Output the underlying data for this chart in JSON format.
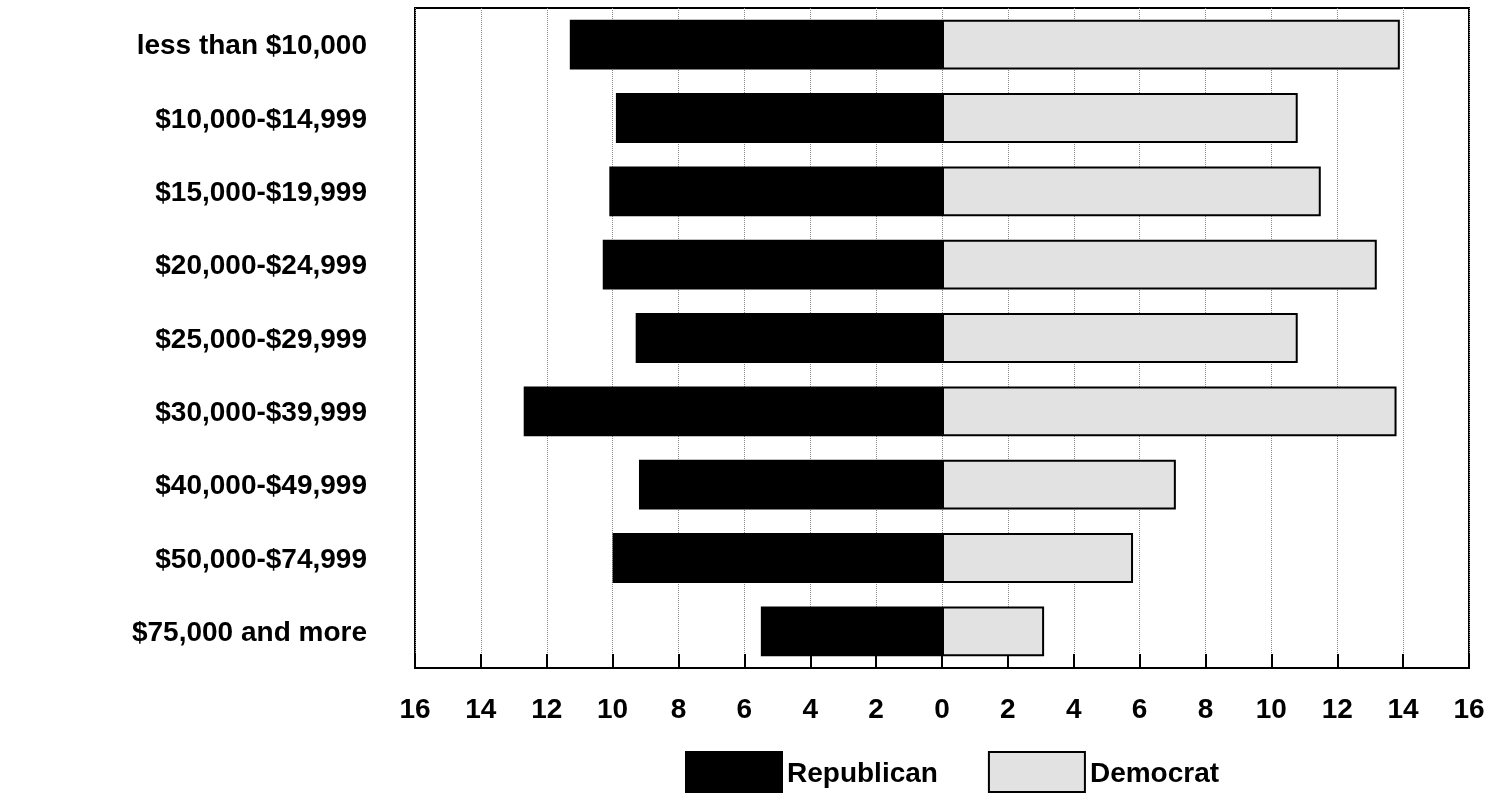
{
  "chart_data": {
    "type": "bar",
    "orientation": "horizontal",
    "categories": [
      "less than $10,000",
      "$10,000-$14,999",
      "$15,000-$19,999",
      "$20,000-$24,999",
      "$25,000-$29,999",
      "$30,000-$39,999",
      "$40,000-$49,999",
      "$50,000-$74,999",
      "$75,000 and more"
    ],
    "series": [
      {
        "name": "Republican",
        "color": "#000000",
        "values": [
          -11.3,
          -9.9,
          -10.1,
          -10.3,
          -9.3,
          -12.7,
          -9.2,
          -10.0,
          -5.5
        ]
      },
      {
        "name": "Democrat",
        "color": "#e2e2e2",
        "values": [
          13.9,
          10.8,
          11.5,
          13.2,
          10.8,
          13.8,
          7.1,
          5.8,
          3.1
        ]
      }
    ],
    "xlim": [
      -16,
      16
    ],
    "xticks": [
      {
        "value": -16,
        "label": "16"
      },
      {
        "value": -14,
        "label": "14"
      },
      {
        "value": -12,
        "label": "12"
      },
      {
        "value": -10,
        "label": "10"
      },
      {
        "value": -8,
        "label": "8"
      },
      {
        "value": -6,
        "label": "6"
      },
      {
        "value": -4,
        "label": "4"
      },
      {
        "value": -2,
        "label": "2"
      },
      0,
      2,
      4,
      6,
      8,
      10,
      12,
      14,
      16
    ],
    "stacked": true,
    "grid": "x",
    "legend": "bottom"
  }
}
